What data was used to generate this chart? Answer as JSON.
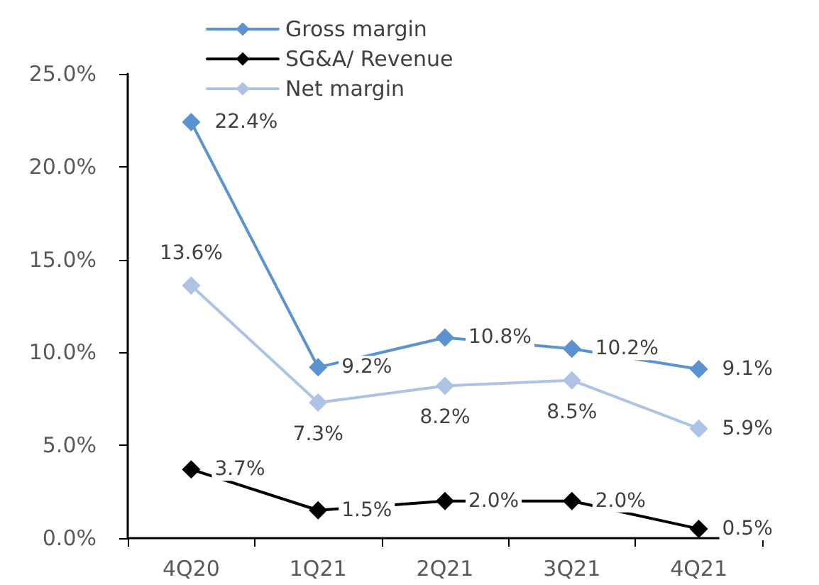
{
  "chart_data": {
    "type": "line",
    "categories": [
      "4Q20",
      "1Q21",
      "2Q21",
      "3Q21",
      "4Q21"
    ],
    "series": [
      {
        "name": "Gross margin",
        "color": "#5b92d0",
        "values": [
          22.4,
          9.2,
          10.8,
          10.2,
          9.1
        ],
        "value_labels": [
          "22.4%",
          "9.2%",
          "10.8%",
          "10.2%",
          "9.1%"
        ]
      },
      {
        "name": "SG&A/ Revenue",
        "color": "#000000",
        "values": [
          3.7,
          1.5,
          2.0,
          2.0,
          0.5
        ],
        "value_labels": [
          "3.7%",
          "1.5%",
          "2.0%",
          "2.0%",
          "0.5%"
        ]
      },
      {
        "name": "Net margin",
        "color": "#adc3e6",
        "values": [
          13.6,
          7.3,
          8.2,
          8.5,
          5.9
        ],
        "value_labels": [
          "13.6%",
          "7.3%",
          "8.2%",
          "8.5%",
          "5.9%"
        ]
      }
    ],
    "ylim": [
      0,
      25
    ],
    "yticks": [
      {
        "value": 0,
        "label": "0.0%"
      },
      {
        "value": 5,
        "label": "5.0%"
      },
      {
        "value": 10,
        "label": "10.0%"
      },
      {
        "value": 15,
        "label": "15.0%"
      },
      {
        "value": 20,
        "label": "20.0%"
      },
      {
        "value": 25,
        "label": "25.0%"
      }
    ],
    "grid": false,
    "legend": "top",
    "marker": "diamond",
    "line_style": "solid"
  }
}
